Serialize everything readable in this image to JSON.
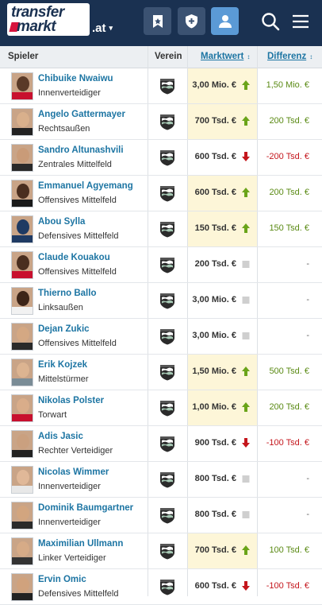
{
  "header": {
    "logo_line1": "transfer",
    "logo_line2": "markt",
    "domain": ".at",
    "domain_caret": "▾"
  },
  "table": {
    "columns": {
      "player": "Spieler",
      "club": "Verein",
      "market_value": "Marktwert",
      "difference": "Differenz",
      "sort_icon": "↕"
    },
    "rows": [
      {
        "name": "Chibuike Nwaiwu",
        "position": "Innenverteidiger",
        "value": "3,00 Mio. €",
        "trend": "up",
        "diff": "1,50 Mio. €",
        "skin": "#5a3a28",
        "shirt": "#c8102e"
      },
      {
        "name": "Angelo Gattermayer",
        "position": "Rechtsaußen",
        "value": "700 Tsd. €",
        "trend": "up",
        "diff": "200 Tsd. €",
        "skin": "#d9b08c",
        "shirt": "#222222"
      },
      {
        "name": "Sandro Altunashvili",
        "position": "Zentrales Mittelfeld",
        "value": "600 Tsd. €",
        "trend": "down",
        "diff": "-200 Tsd. €",
        "skin": "#c99b78",
        "shirt": "#2a2a2a"
      },
      {
        "name": "Emmanuel Agyemang",
        "position": "Offensives Mittelfeld",
        "value": "600 Tsd. €",
        "trend": "up",
        "diff": "200 Tsd. €",
        "skin": "#4a2e1f",
        "shirt": "#1a1a1a"
      },
      {
        "name": "Abou Sylla",
        "position": "Defensives Mittelfeld",
        "value": "150 Tsd. €",
        "trend": "up",
        "diff": "150 Tsd. €",
        "skin": "#1f3a63",
        "shirt": "#1f3a63"
      },
      {
        "name": "Claude Kouakou",
        "position": "Offensives Mittelfeld",
        "value": "200 Tsd. €",
        "trend": "none",
        "diff": "-",
        "skin": "#4a2e1f",
        "shirt": "#c8102e"
      },
      {
        "name": "Thierno Ballo",
        "position": "Linksaußen",
        "value": "3,00 Mio. €",
        "trend": "none",
        "diff": "-",
        "skin": "#3d2518",
        "shirt": "#f2f2f2"
      },
      {
        "name": "Dejan Zukic",
        "position": "Offensives Mittelfeld",
        "value": "3,00 Mio. €",
        "trend": "none",
        "diff": "-",
        "skin": "#d4a883",
        "shirt": "#2a2a2a"
      },
      {
        "name": "Erik Kojzek",
        "position": "Mittelstürmer",
        "value": "1,50 Mio. €",
        "trend": "up",
        "diff": "500 Tsd. €",
        "skin": "#dcb491",
        "shirt": "#7a8c96"
      },
      {
        "name": "Nikolas Polster",
        "position": "Torwart",
        "value": "1,00 Mio. €",
        "trend": "up",
        "diff": "200 Tsd. €",
        "skin": "#d9ad8a",
        "shirt": "#c8102e"
      },
      {
        "name": "Adis Jasic",
        "position": "Rechter Verteidiger",
        "value": "900 Tsd. €",
        "trend": "down",
        "diff": "-100 Tsd. €",
        "skin": "#caa07f",
        "shirt": "#222222"
      },
      {
        "name": "Nicolas Wimmer",
        "position": "Innenverteidiger",
        "value": "800 Tsd. €",
        "trend": "none",
        "diff": "-",
        "skin": "#e0b898",
        "shirt": "#e8e8e8"
      },
      {
        "name": "Dominik Baumgartner",
        "position": "Innenverteidiger",
        "value": "800 Tsd. €",
        "trend": "none",
        "diff": "-",
        "skin": "#d2a57f",
        "shirt": "#2a2a2a"
      },
      {
        "name": "Maximilian Ullmann",
        "position": "Linker Verteidiger",
        "value": "700 Tsd. €",
        "trend": "up",
        "diff": "100 Tsd. €",
        "skin": "#d6ab87",
        "shirt": "#333333"
      },
      {
        "name": "Ervin Omic",
        "position": "Defensives Mittelfeld",
        "value": "600 Tsd. €",
        "trend": "down",
        "diff": "-100 Tsd. €",
        "skin": "#d0a27d",
        "shirt": "#222222"
      }
    ]
  },
  "colors": {
    "header_bg": "#1a3151",
    "link": "#1d75a3",
    "up": "#5a8a14",
    "down": "#c4161c",
    "highlight": "#fdf6d8"
  }
}
